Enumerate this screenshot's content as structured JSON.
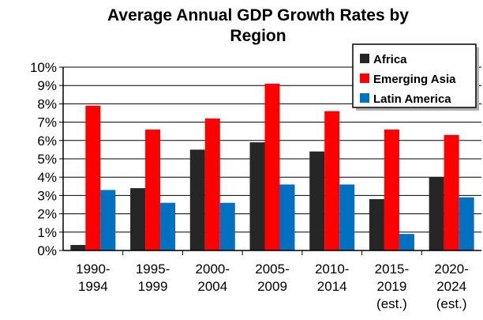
{
  "chart_data": {
    "type": "bar",
    "title": "Average Annual GDP Growth Rates by Region",
    "title_lines": [
      "Average Annual GDP Growth Rates by",
      "Region"
    ],
    "categories": [
      [
        "1990-",
        "1994"
      ],
      [
        "1995-",
        "1999"
      ],
      [
        "2000-",
        "2004"
      ],
      [
        "2005-",
        "2009"
      ],
      [
        "2010-",
        "2014"
      ],
      [
        "2015-",
        "2019",
        "(est.)"
      ],
      [
        "2020-",
        "2024",
        "(est.)"
      ]
    ],
    "series": [
      {
        "name": "Africa",
        "color": "#262626",
        "values": [
          0.3,
          3.4,
          5.5,
          5.9,
          5.4,
          2.8,
          4.0
        ]
      },
      {
        "name": "Emerging Asia",
        "color": "#ff0000",
        "values": [
          7.9,
          6.6,
          7.2,
          9.1,
          7.6,
          6.6,
          6.3
        ]
      },
      {
        "name": "Latin America",
        "color": "#0070c0",
        "values": [
          3.3,
          2.6,
          2.6,
          3.6,
          3.6,
          0.9,
          2.9
        ]
      }
    ],
    "ylim": [
      0,
      10
    ],
    "yticks": [
      "0%",
      "1%",
      "2%",
      "3%",
      "4%",
      "5%",
      "6%",
      "7%",
      "8%",
      "9%",
      "10%"
    ],
    "xlabel": "",
    "ylabel": "",
    "grid": true,
    "legend_position": "top-right"
  }
}
